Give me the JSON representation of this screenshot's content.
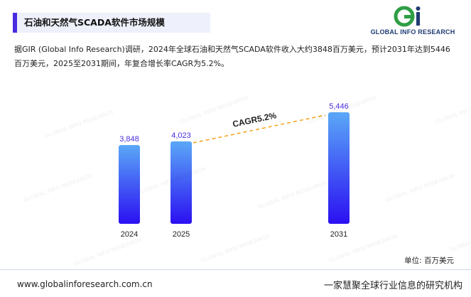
{
  "header": {
    "title": "石油和天然气SCADA软件市场规模"
  },
  "logo": {
    "text": "GLOBAL INFO RESEARCH",
    "mark": "Gi"
  },
  "summary": "据GIR (Global Info Research)调研，2024年全球石油和天然气SCADA软件收入大约3848百万美元，预计2031年达到5446百万美元，2025至2031期间，年复合增长率CAGR为5.2%。",
  "unit_label": "单位: 百万美元",
  "footer": {
    "website": "www.globalinforesearch.com.cn",
    "slogan": "一家慧聚全球行业信息的研究机构"
  },
  "colors": {
    "accent": "#4a2ce0",
    "bar_top": "#5aa8f7",
    "bar_bottom": "#2b10f2",
    "cagr_line": "#f5a623"
  },
  "chart_data": {
    "type": "bar",
    "categories": [
      "2024",
      "2025",
      "2031"
    ],
    "values": [
      3848,
      4023,
      5446
    ],
    "value_labels": [
      "3,848",
      "4,023",
      "5,446"
    ],
    "annotation": "CAGR5.2%",
    "ylim": [
      0,
      5600
    ]
  }
}
